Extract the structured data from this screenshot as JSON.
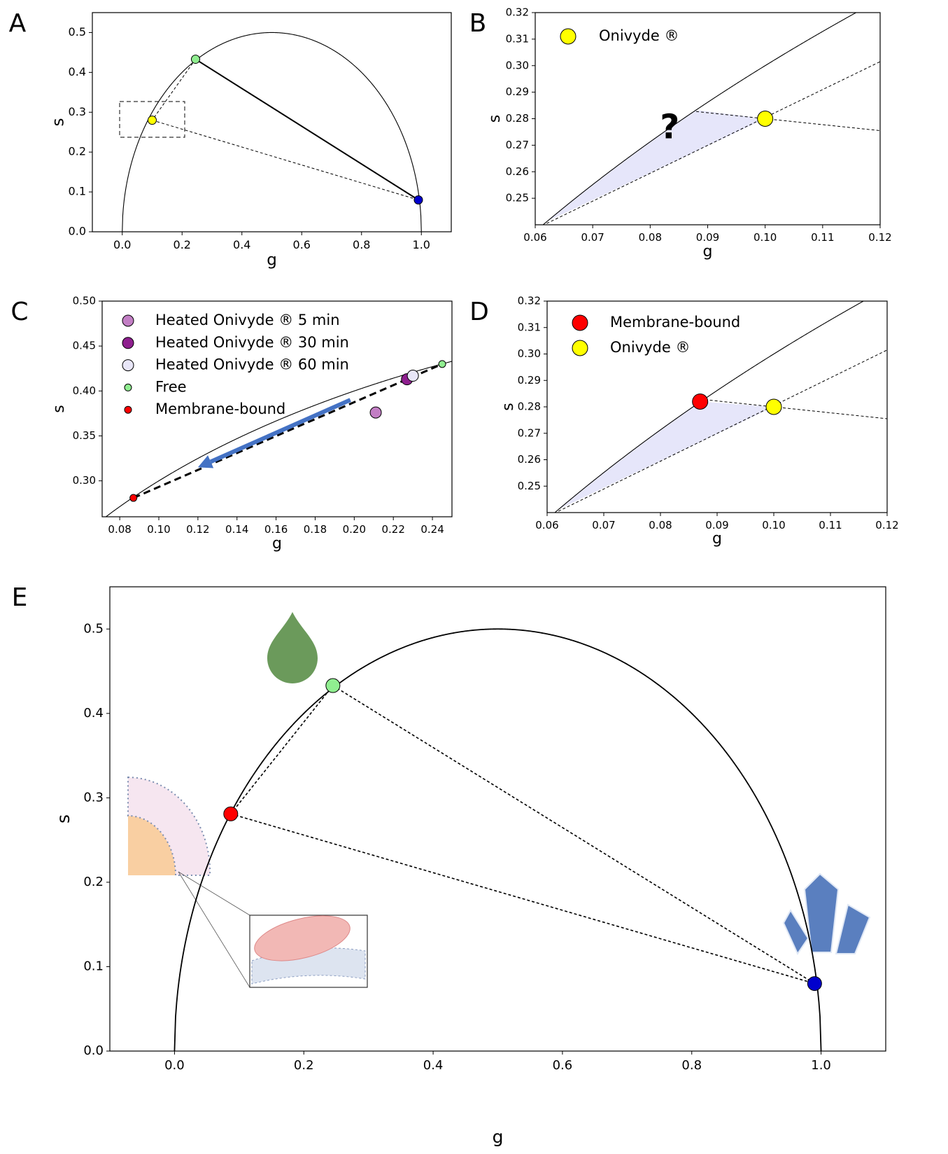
{
  "chart_data": [
    {
      "type": "scatter",
      "panel_label": "A",
      "xlabel": "g",
      "ylabel": "s",
      "universal_circle": true,
      "xlim": [
        -0.1,
        1.1
      ],
      "ylim": [
        0,
        0.55
      ],
      "xticks": [
        {
          "value": 0,
          "label": "0.0"
        },
        0.2,
        0.4,
        0.6,
        0.8,
        {
          "value": 1,
          "label": "1.0"
        }
      ],
      "yticks": [
        {
          "value": 0,
          "label": "0.0"
        },
        0.1,
        0.2,
        0.3,
        0.4,
        0.5
      ],
      "lines": [
        {
          "x": [
            0.245,
            0.99
          ],
          "values": [
            0.433,
            0.08
          ],
          "dash": false,
          "width": 2
        },
        {
          "x": [
            0.245,
            0.1
          ],
          "values": [
            0.433,
            0.28
          ],
          "dash": true,
          "width": 1
        },
        {
          "x": [
            0.1,
            0.99
          ],
          "values": [
            0.28,
            0.08
          ],
          "dash": true,
          "width": 1
        }
      ],
      "series": [
        {
          "color": "#90ee90",
          "x": [
            0.245
          ],
          "values": [
            0.433
          ],
          "size": 6
        },
        {
          "color": "#ffff00",
          "x": [
            0.1
          ],
          "values": [
            0.28
          ],
          "size": 6
        },
        {
          "color": "#0000cd",
          "x": [
            0.99
          ],
          "values": [
            0.08
          ],
          "size": 6
        }
      ]
    },
    {
      "type": "scatter",
      "panel_label": "B",
      "xlabel": "g",
      "ylabel": "s",
      "universal_circle": true,
      "legend": "upper left",
      "xlim": [
        0.06,
        0.12
      ],
      "ylim": [
        0.24,
        0.32
      ],
      "xticks": [
        0.06,
        0.07,
        0.08,
        0.09,
        {
          "value": 0.1,
          "label": "0.10"
        },
        0.11,
        0.12
      ],
      "yticks": [
        0.25,
        0.26,
        0.27,
        0.28,
        0.29,
        {
          "value": 0.3,
          "label": "0.30"
        },
        0.31,
        0.32
      ],
      "region": {
        "color": "#e6e6fa",
        "x": [
          0.062,
          0.07,
          0.08,
          0.088,
          0.1
        ],
        "values": [
          0.2412,
          0.2551,
          0.2713,
          0.2833,
          0.28
        ]
      },
      "lines": [
        {
          "x": [
            0.062,
            0.12
          ],
          "values": [
            0.2405,
            0.3015
          ],
          "dash": true,
          "width": 1
        },
        {
          "x": [
            0.088,
            0.12
          ],
          "values": [
            0.2827,
            0.2755
          ],
          "dash": true,
          "width": 1
        }
      ],
      "annotation": "?",
      "series": [
        {
          "name": "Onivyde ®",
          "color": "#ffff00",
          "x": [
            0.1
          ],
          "values": [
            0.28
          ],
          "size": 11
        }
      ]
    },
    {
      "type": "scatter",
      "panel_label": "C",
      "xlabel": "g",
      "ylabel": "s",
      "universal_circle": true,
      "legend": "upper left",
      "xlim": [
        0.071,
        0.25
      ],
      "ylim": [
        0.26,
        0.5
      ],
      "xticks": [
        0.08,
        {
          "value": 0.1,
          "label": "0.10"
        },
        0.12,
        0.14,
        0.16,
        0.18,
        {
          "value": 0.2,
          "label": "0.20"
        },
        0.22,
        0.24
      ],
      "yticks": [
        {
          "value": 0.3,
          "label": "0.30"
        },
        0.35,
        {
          "value": 0.4,
          "label": "0.40"
        },
        0.45,
        {
          "value": 0.5,
          "label": "0.50"
        }
      ],
      "lines": [
        {
          "x": [
            0.087,
            0.245
          ],
          "values": [
            0.281,
            0.43
          ],
          "dash": true,
          "width": 3
        }
      ],
      "arrow": {
        "color": "#4472c4",
        "x": [
          0.198,
          0.12
        ],
        "values": [
          0.39,
          0.315
        ]
      },
      "series": [
        {
          "name": "Heated Onivyde ® 5 min",
          "color": "#c27ec4",
          "x": [
            0.211
          ],
          "values": [
            0.376
          ],
          "size": 8
        },
        {
          "name": "Heated Onivyde ® 30 min",
          "color": "#8e1f8e",
          "x": [
            0.227
          ],
          "values": [
            0.413
          ],
          "size": 8
        },
        {
          "name": "Heated Onivyde ® 60 min",
          "color": "#e8e6f8",
          "x": [
            0.23
          ],
          "values": [
            0.417
          ],
          "size": 8
        },
        {
          "name": "Free",
          "color": "#90ee90",
          "x": [
            0.245
          ],
          "values": [
            0.43
          ],
          "size": 5
        },
        {
          "name": "Membrane-bound",
          "color": "#ff0000",
          "x": [
            0.087
          ],
          "values": [
            0.281
          ],
          "size": 5
        }
      ]
    },
    {
      "type": "scatter",
      "panel_label": "D",
      "xlabel": "g",
      "ylabel": "s",
      "universal_circle": true,
      "legend": "upper left",
      "xlim": [
        0.06,
        0.12
      ],
      "ylim": [
        0.24,
        0.32
      ],
      "xticks": [
        0.06,
        0.07,
        0.08,
        0.09,
        {
          "value": 0.1,
          "label": "0.10"
        },
        0.11,
        0.12
      ],
      "yticks": [
        0.25,
        0.26,
        0.27,
        0.28,
        0.29,
        {
          "value": 0.3,
          "label": "0.30"
        },
        0.31,
        0.32
      ],
      "region": {
        "color": "#e6e6fa",
        "x": [
          0.062,
          0.07,
          0.08,
          0.087,
          0.1
        ],
        "values": [
          0.2412,
          0.2551,
          0.2713,
          0.282,
          0.28
        ]
      },
      "lines": [
        {
          "x": [
            0.062,
            0.12
          ],
          "values": [
            0.2405,
            0.3015
          ],
          "dash": true,
          "width": 1
        },
        {
          "x": [
            0.087,
            0.12
          ],
          "values": [
            0.2829,
            0.2755
          ],
          "dash": true,
          "width": 1
        }
      ],
      "series": [
        {
          "name": "Membrane-bound",
          "color": "#ff0000",
          "x": [
            0.087
          ],
          "values": [
            0.282
          ],
          "size": 11
        },
        {
          "name": "Onivyde ®",
          "color": "#ffff00",
          "x": [
            0.1
          ],
          "values": [
            0.28
          ],
          "size": 11
        }
      ]
    },
    {
      "type": "scatter",
      "panel_label": "E",
      "xlabel": "g",
      "ylabel": "s",
      "universal_circle": true,
      "xlim": [
        -0.1,
        1.1
      ],
      "ylim": [
        0,
        0.55
      ],
      "xticks": [
        {
          "value": 0,
          "label": "0.0"
        },
        0.2,
        0.4,
        0.6,
        0.8,
        {
          "value": 1,
          "label": "1.0"
        }
      ],
      "yticks": [
        {
          "value": 0,
          "label": "0.0"
        },
        0.1,
        0.2,
        0.3,
        0.4,
        0.5
      ],
      "lines": [
        {
          "x": [
            0.245,
            0.087
          ],
          "values": [
            0.433,
            0.281
          ],
          "dash": true,
          "width": 1.6
        },
        {
          "x": [
            0.087,
            0.99
          ],
          "values": [
            0.281,
            0.08
          ],
          "dash": true,
          "width": 1.6
        },
        {
          "x": [
            0.245,
            0.99
          ],
          "values": [
            0.433,
            0.08
          ],
          "dash": true,
          "width": 1.6
        }
      ],
      "series": [
        {
          "color": "#90ee90",
          "x": [
            0.245
          ],
          "values": [
            0.433
          ],
          "size": 10
        },
        {
          "color": "#ff0000",
          "x": [
            0.087
          ],
          "values": [
            0.281
          ],
          "size": 10
        },
        {
          "color": "#0000cd",
          "x": [
            0.99
          ],
          "values": [
            0.08
          ],
          "size": 10
        }
      ]
    }
  ]
}
